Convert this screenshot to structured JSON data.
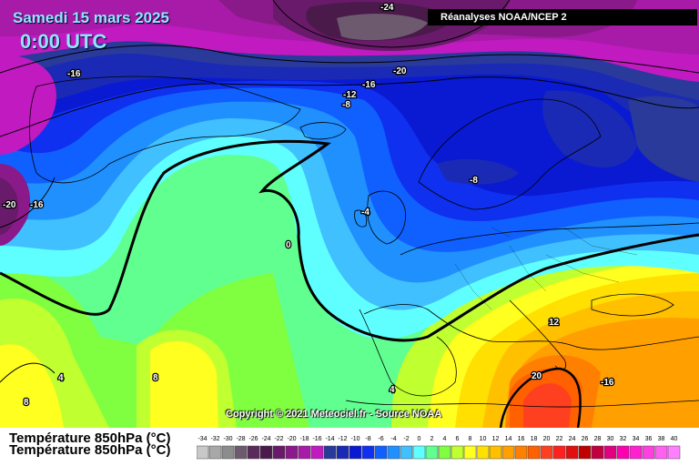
{
  "header": {
    "date": "Samedi 15 mars 2025",
    "time": "0:00 UTC",
    "source": "Réanalyses NOAA/NCEP 2"
  },
  "footer": {
    "copyright": "Copyright © 2021 Meteociel.fr - Source NOAA",
    "parameter_line1": "Température 850hPa (°C)",
    "parameter_line2": "Température 850hPa (°C)"
  },
  "contour_labels": [
    "-24",
    "-20",
    "-16",
    "-16",
    "-12",
    "-8",
    "-20",
    "-16",
    "-8",
    "-4",
    "0",
    "4",
    "8",
    "4",
    "8",
    "12",
    "20",
    "-16"
  ],
  "legend": {
    "values": [
      "-34",
      "-32",
      "-30",
      "-28",
      "-26",
      "-24",
      "-22",
      "-20",
      "-18",
      "-16",
      "-14",
      "-12",
      "-10",
      "-8",
      "-6",
      "-4",
      "-2",
      "0",
      "2",
      "4",
      "6",
      "8",
      "10",
      "12",
      "14",
      "16",
      "18",
      "20",
      "22",
      "24",
      "26",
      "28",
      "30",
      "32",
      "34",
      "36",
      "38",
      "40"
    ],
    "colors": [
      "#c8c8c8",
      "#a8a8a8",
      "#8c8c8c",
      "#6e5a6e",
      "#5a2a5a",
      "#4a1a4a",
      "#6a1a6a",
      "#8a1a8a",
      "#a81aa8",
      "#c01ac0",
      "#2a3a9a",
      "#1a2ab4",
      "#0a1ad2",
      "#1030f0",
      "#1060ff",
      "#2090ff",
      "#40c0ff",
      "#60ffff",
      "#60ff90",
      "#80ff40",
      "#c0ff30",
      "#ffff20",
      "#ffe000",
      "#ffc000",
      "#ffa000",
      "#ff8000",
      "#ff6000",
      "#ff4020",
      "#ff2020",
      "#e01010",
      "#c00000",
      "#c00040",
      "#e00080",
      "#ff00b0",
      "#ff20d0",
      "#ff40e0",
      "#ff60f0",
      "#ff80ff"
    ]
  },
  "colors": {
    "title_text": "#8fe6ff",
    "source_bg": "#000000",
    "ocean_cold": "#1030f0",
    "warm_core": "#ff2020"
  }
}
